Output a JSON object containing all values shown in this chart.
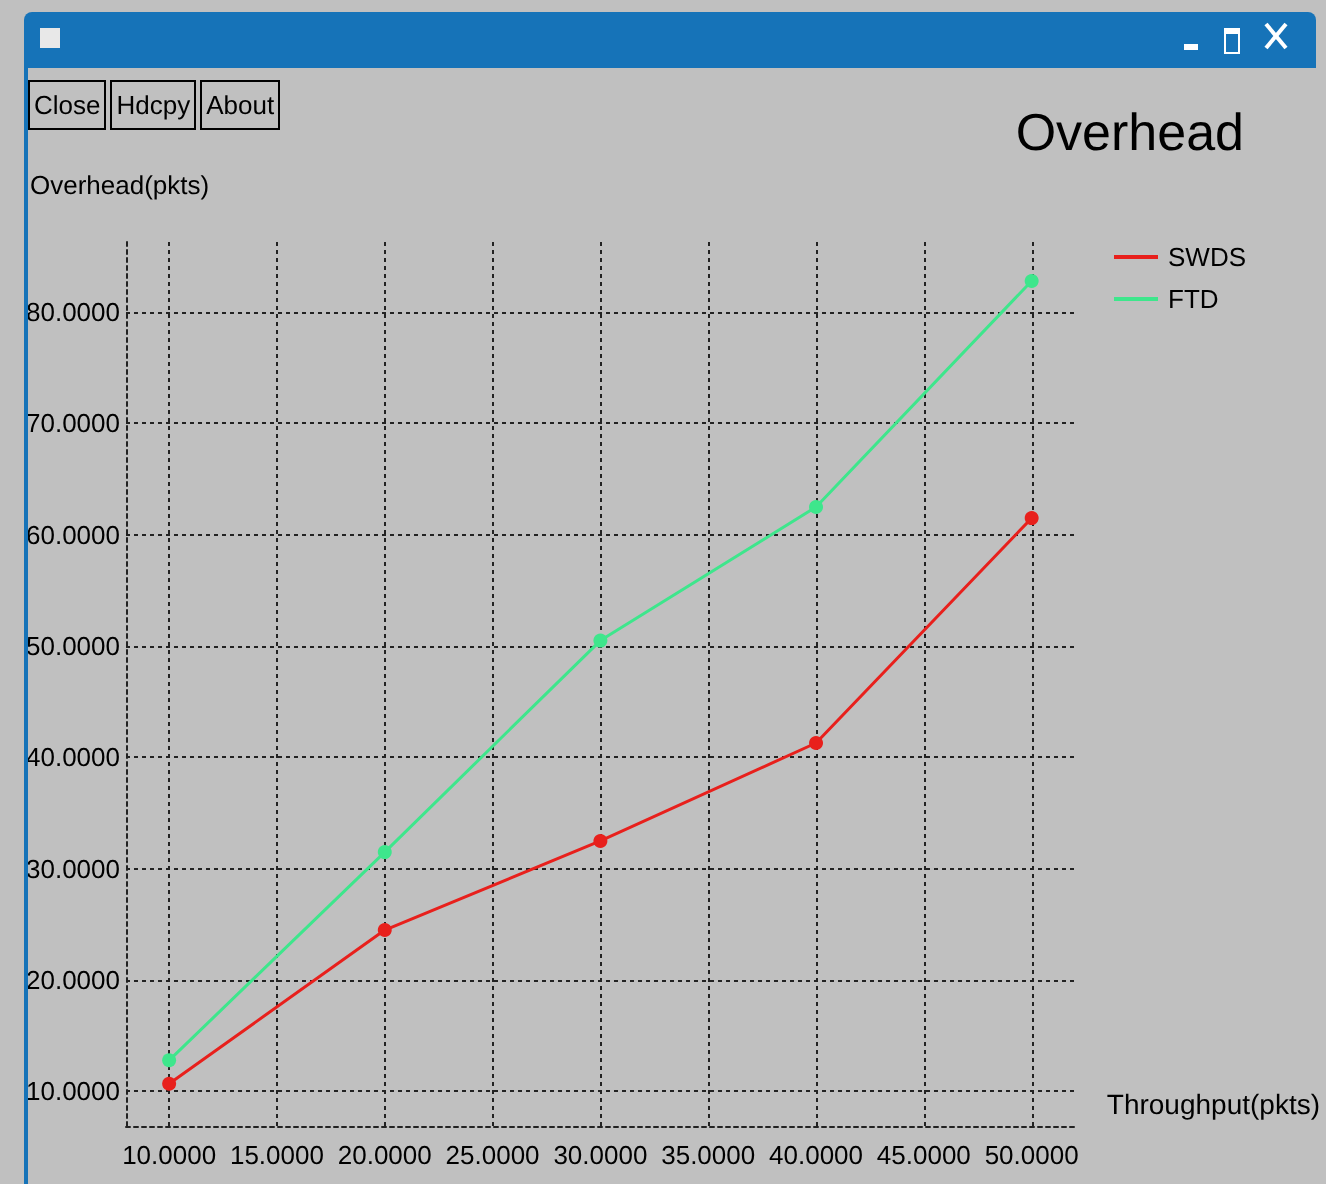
{
  "chart_data": {
    "type": "line",
    "title": "Overhead",
    "xlabel": "Throughput(pkts)",
    "ylabel": "Overhead(pkts)",
    "annotations": [
      "Close",
      "Hdcpy",
      "About"
    ],
    "x": [
      10,
      20,
      30,
      40,
      50
    ],
    "series": [
      {
        "name": "SWDS",
        "color": "#e8201c",
        "values": [
          10.7,
          24.5,
          32.5,
          41.3,
          61.5
        ]
      },
      {
        "name": "FTD",
        "color": "#3ee68c",
        "values": [
          12.8,
          31.5,
          50.5,
          62.5,
          82.8
        ]
      }
    ],
    "xlim": [
      8,
      52
    ],
    "xticks": [
      {
        "value": 10,
        "label": "10.0000"
      },
      {
        "value": 15,
        "label": "15.0000"
      },
      {
        "value": 20,
        "label": "20.0000"
      },
      {
        "value": 25,
        "label": "25.0000"
      },
      {
        "value": 30,
        "label": "30.0000"
      },
      {
        "value": 35,
        "label": "35.0000"
      },
      {
        "value": 40,
        "label": "40.0000"
      },
      {
        "value": 45,
        "label": "45.0000"
      },
      {
        "value": 50,
        "label": "50.0000"
      }
    ],
    "ylim": [
      6.9,
      86.3
    ],
    "yticks": [
      {
        "value": 10,
        "label": "10.0000"
      },
      {
        "value": 20,
        "label": "20.0000"
      },
      {
        "value": 30,
        "label": "30.0000"
      },
      {
        "value": 40,
        "label": "40.0000"
      },
      {
        "value": 50,
        "label": "50.0000"
      },
      {
        "value": 60,
        "label": "60.0000"
      },
      {
        "value": 70,
        "label": "70.0000"
      },
      {
        "value": 80,
        "label": "80.0000"
      }
    ],
    "grid": true,
    "legend": "top right",
    "marker": "circle",
    "line_style": "solid"
  }
}
